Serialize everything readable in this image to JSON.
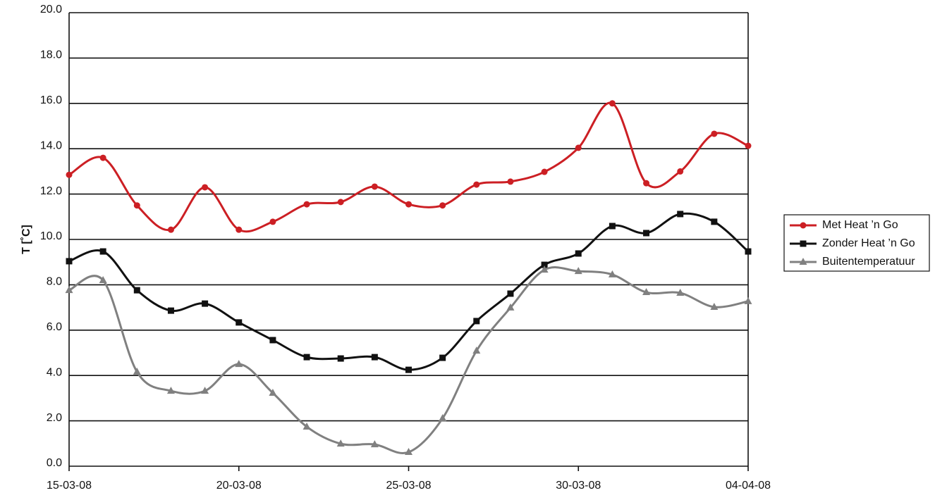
{
  "chart_data": {
    "type": "line",
    "y_label": "T [˚C]",
    "x": [
      "15-03-08",
      "16-03-08",
      "17-03-08",
      "18-03-08",
      "19-03-08",
      "20-03-08",
      "21-03-08",
      "22-03-08",
      "23-03-08",
      "24-03-08",
      "25-03-08",
      "26-03-08",
      "27-03-08",
      "28-03-08",
      "29-03-08",
      "30-03-08",
      "31-03-08",
      "01-04-08",
      "02-04-08",
      "03-04-08",
      "04-04-08"
    ],
    "xticks": [
      "15-03-08",
      "20-03-08",
      "25-03-08",
      "30-03-08",
      "04-04-08"
    ],
    "ylim": [
      0,
      20
    ],
    "yticks": [
      {
        "value": 0,
        "label": "0.0"
      },
      {
        "value": 2,
        "label": "2.0"
      },
      {
        "value": 4,
        "label": "4.0"
      },
      {
        "value": 6,
        "label": "6.0"
      },
      {
        "value": 8,
        "label": "8.0"
      },
      {
        "value": 10,
        "label": "10.0"
      },
      {
        "value": 12,
        "label": "12.0"
      },
      {
        "value": 14,
        "label": "14.0"
      },
      {
        "value": 16,
        "label": "16.0"
      },
      {
        "value": 18,
        "label": "18.0"
      },
      {
        "value": 20,
        "label": "20.0"
      }
    ],
    "grid": true,
    "legend": "right",
    "series": [
      {
        "name": "Met Heat ’n Go",
        "color": "#cc1f24",
        "marker": "circle",
        "values": [
          12.85,
          13.6,
          11.5,
          10.43,
          12.3,
          10.43,
          10.78,
          11.55,
          11.65,
          12.33,
          11.55,
          11.5,
          12.42,
          12.55,
          12.98,
          14.04,
          16.0,
          12.48,
          13.0,
          14.66,
          14.13
        ]
      },
      {
        "name": "Zonder Heat ’n Go",
        "color": "#111111",
        "marker": "square",
        "values": [
          9.04,
          9.47,
          7.76,
          6.86,
          7.17,
          6.34,
          5.56,
          4.81,
          4.75,
          4.81,
          4.25,
          4.78,
          6.4,
          7.61,
          8.88,
          9.38,
          10.59,
          10.28,
          11.12,
          10.78,
          9.47
        ]
      },
      {
        "name": "Buitentemperatuur",
        "color": "#808080",
        "marker": "triangle",
        "values": [
          7.76,
          8.2,
          4.16,
          3.32,
          3.32,
          4.5,
          3.23,
          1.74,
          0.99,
          0.96,
          0.62,
          2.11,
          5.09,
          6.99,
          8.66,
          8.6,
          8.45,
          7.67,
          7.64,
          7.02,
          7.27
        ]
      }
    ]
  }
}
